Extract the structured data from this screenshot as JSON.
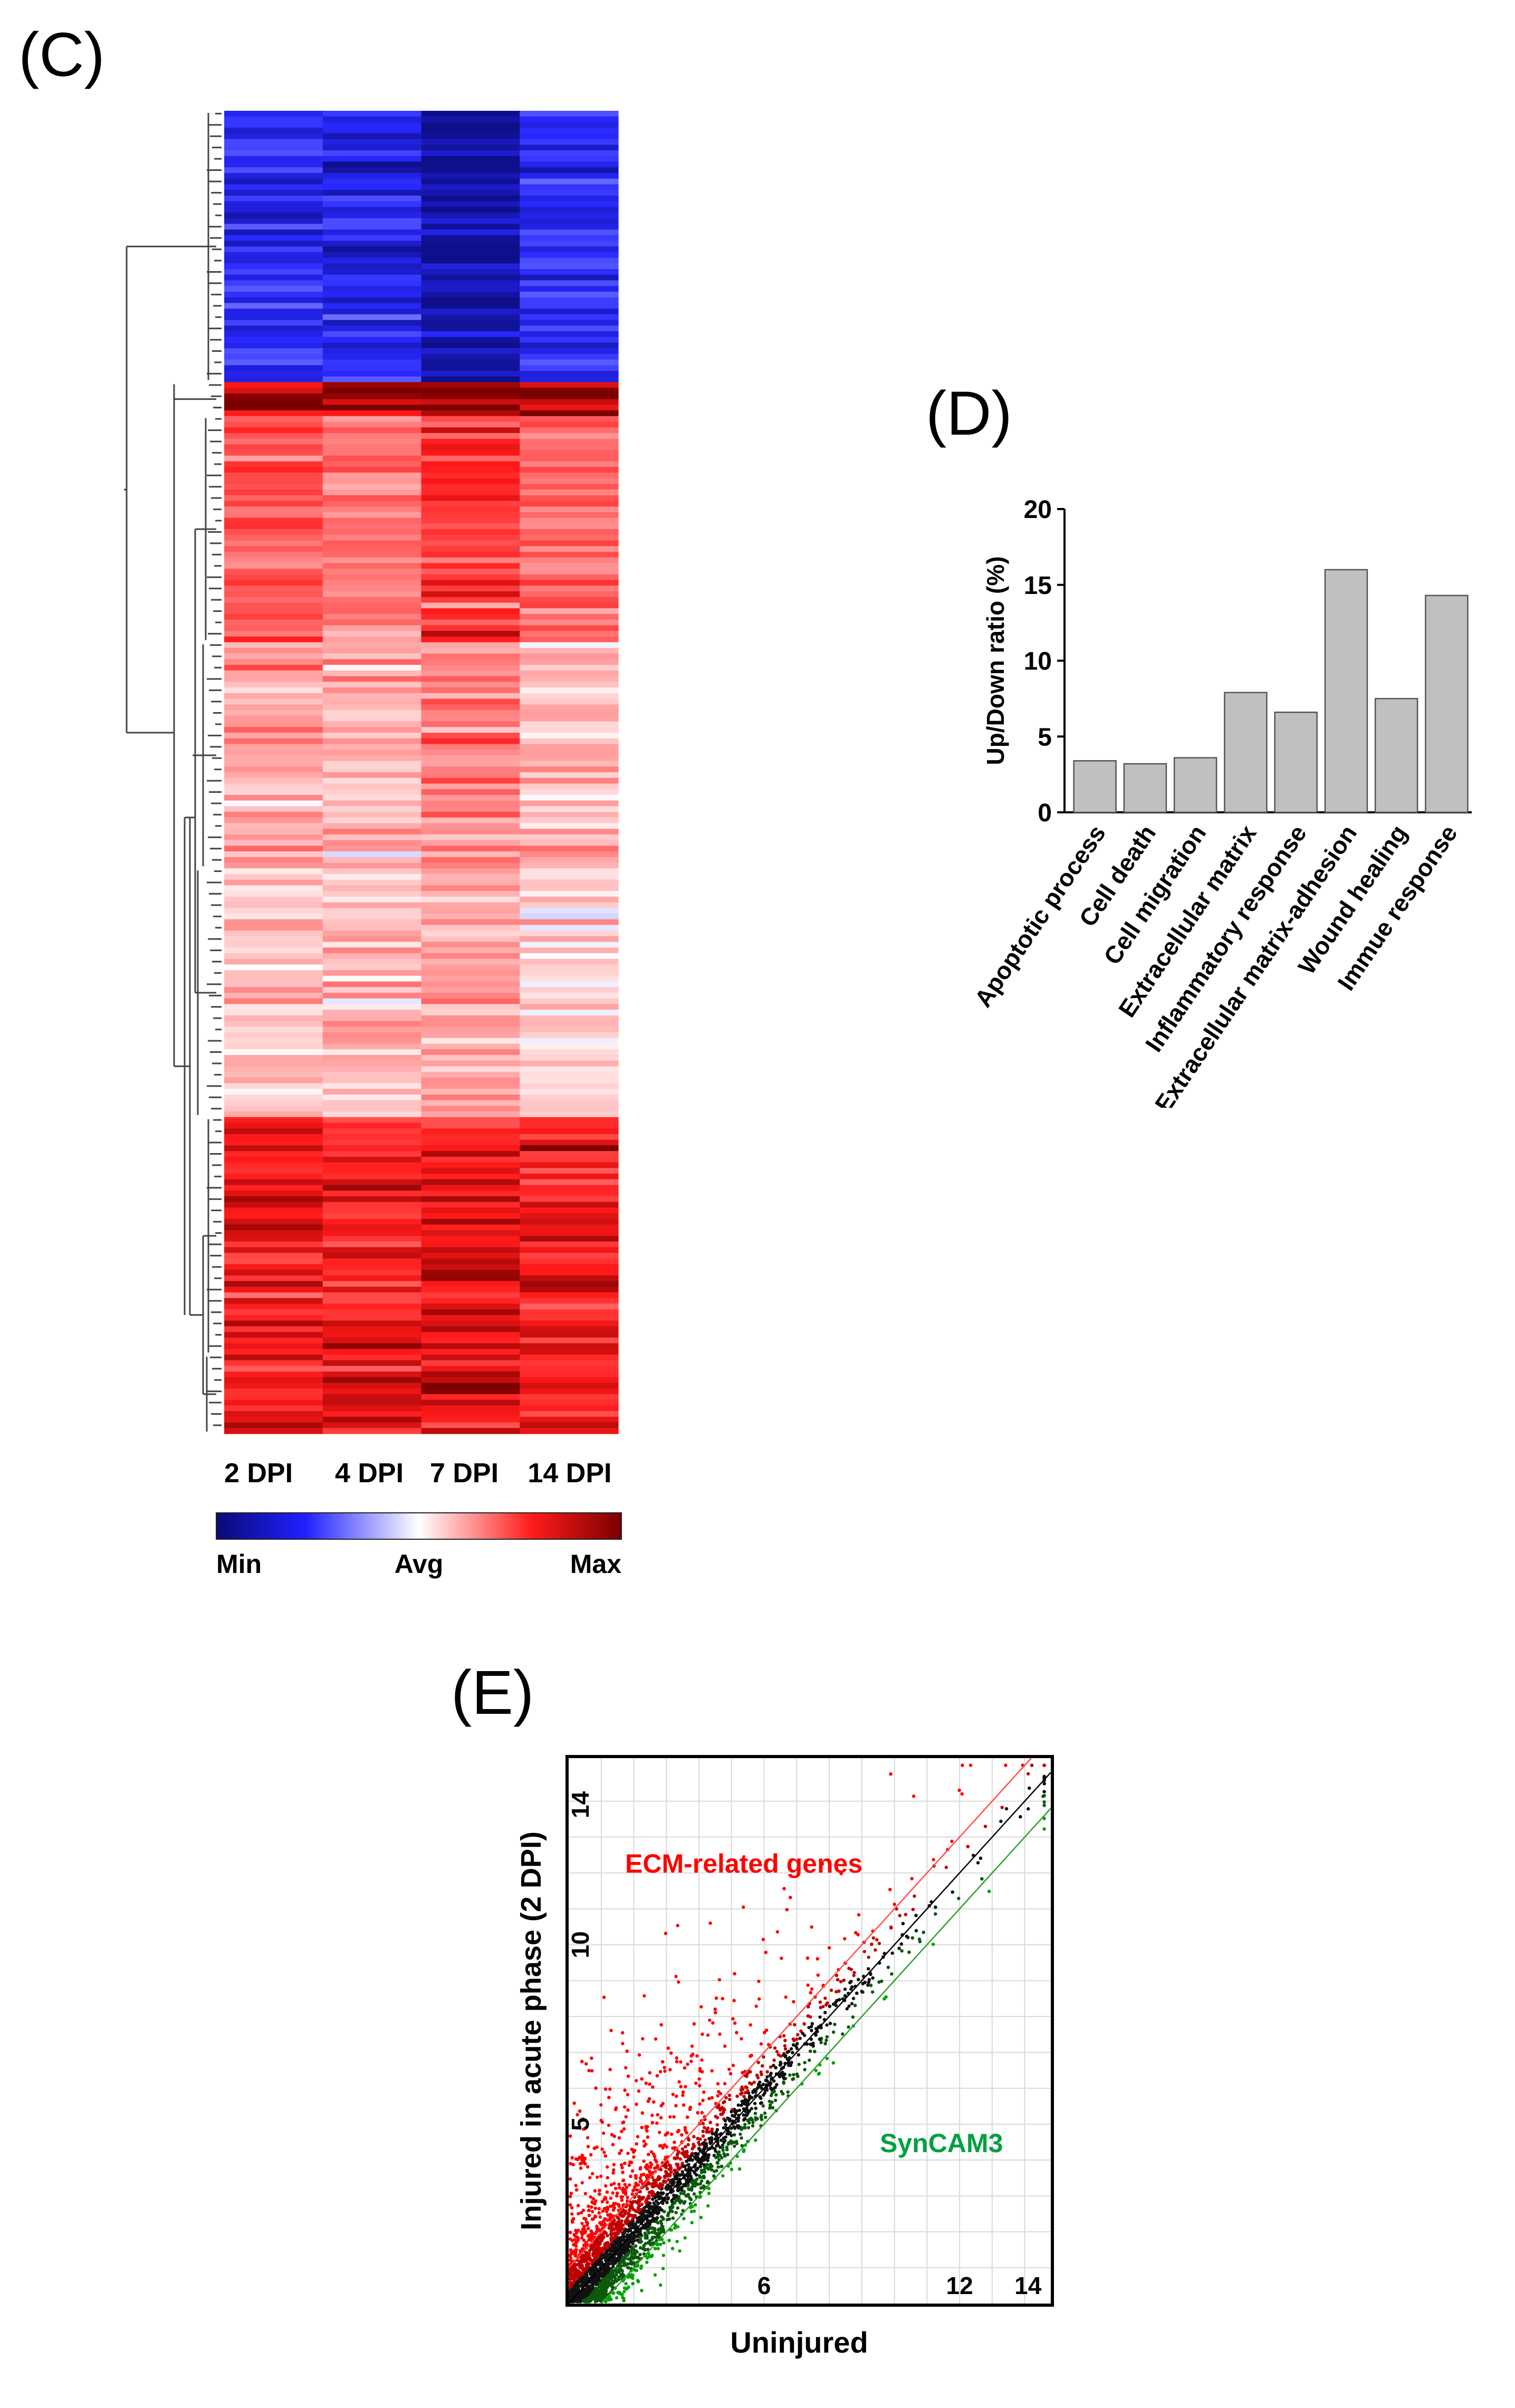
{
  "panels": {
    "c": "(C)",
    "d": "(D)",
    "e": "(E)"
  },
  "chart_data": [
    {
      "type": "heatmap",
      "panel": "(C)",
      "title": "",
      "columns": [
        "2 DPI",
        "4 DPI",
        "7 DPI",
        "14 DPI"
      ],
      "color_scale": {
        "labels": [
          "Min",
          "Avg",
          "Max"
        ],
        "colors": [
          "#0a0a78",
          "#2020ff",
          "#ffffff",
          "#ff1a1a",
          "#7a0000"
        ]
      },
      "row_blocks": [
        {
          "rows": 48,
          "values": [
            -0.7,
            -0.75,
            -0.95,
            -0.72
          ]
        },
        {
          "rows": 6,
          "values": [
            0.95,
            0.92,
            0.97,
            0.94
          ]
        },
        {
          "rows": 40,
          "values": [
            0.55,
            0.45,
            0.65,
            0.5
          ]
        },
        {
          "rows": 40,
          "values": [
            0.3,
            0.25,
            0.4,
            0.22
          ]
        },
        {
          "rows": 44,
          "values": [
            0.18,
            0.2,
            0.3,
            0.15
          ]
        },
        {
          "rows": 42,
          "values": [
            0.75,
            0.7,
            0.8,
            0.7
          ]
        },
        {
          "rows": 14,
          "values": [
            0.78,
            0.8,
            0.88,
            0.76
          ]
        }
      ]
    },
    {
      "type": "bar",
      "panel": "(D)",
      "title": "",
      "categories": [
        "Apoptotic process",
        "Cell death",
        "Cell migration",
        "Extracellular matrix",
        "Inflammatory response",
        "Extracellular matrix-adhesion",
        "Wound healing",
        "Immue response"
      ],
      "values": [
        3.4,
        3.2,
        3.6,
        7.9,
        6.6,
        16.0,
        7.5,
        14.3
      ],
      "xlabel": "",
      "ylabel": "Up/Down ratio (%)",
      "ylim": [
        0,
        20
      ],
      "yticks": [
        "0",
        "5",
        "10",
        "15",
        "20"
      ],
      "bar_color": "#c0c0c0"
    },
    {
      "type": "scatter",
      "panel": "(E)",
      "title": "",
      "xlabel": "Uninjured",
      "ylabel": "Injured in acute phase (2 DPI)",
      "xlim": [
        0,
        14.8
      ],
      "ylim": [
        0,
        15.2
      ],
      "xticks": [
        "6",
        "12",
        "14"
      ],
      "yticks": [
        "5",
        "10",
        "14"
      ],
      "annotations": [
        "ECM-related genes",
        "SynCAM3"
      ],
      "reference_lines": [
        {
          "name": "identity",
          "slope": 1,
          "offset": 0,
          "color": "#000000"
        },
        {
          "name": "2-fold up",
          "slope": 1,
          "offset": 1,
          "color": "#ff4d4d"
        },
        {
          "name": "2-fold down",
          "slope": 1,
          "offset": -1,
          "color": "#2ca02c"
        }
      ],
      "series": [
        {
          "name": "upregulated",
          "color": "#ff0000"
        },
        {
          "name": "unchanged",
          "color": "#000000"
        },
        {
          "name": "downregulated",
          "color": "#00a000"
        }
      ]
    }
  ]
}
